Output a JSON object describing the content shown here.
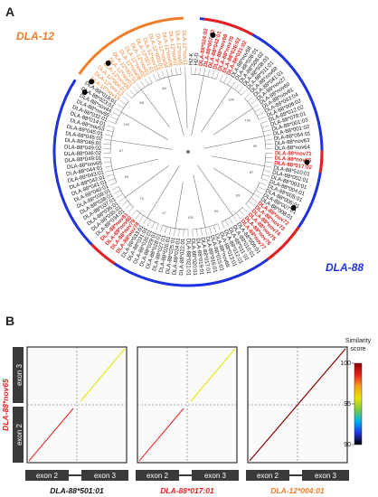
{
  "panel_a": {
    "letter": "A",
    "groups": [
      {
        "label": "DLA-12",
        "color": "#f07d2a"
      },
      {
        "label": "DLA-88",
        "color": "#1f32e0"
      }
    ],
    "outgroup": [
      "H2-K",
      "H2-D"
    ],
    "orange_leaves": [
      "DLA-12*nov11",
      "DLA-12*nov05",
      "DLA-12*nov07",
      "DLA-12*nov06",
      "DLA-12*nov04",
      "DLA-12*003:01",
      "DLA-12*nov10",
      "DLA-12*001:01",
      "DLA-12*nov03",
      "DLA-12*nov02",
      "DLA-12*nov08",
      "DLA-12*002:01",
      "DLA-12*nov01",
      "DLA-12*nov09",
      "DLA-12*004:01",
      "DLA-12*nov12",
      "DLA-12*nov13"
    ],
    "black_leaves": [
      "DLA-88*nov65",
      "DLA-88*049:01",
      "DLA-88*046:02",
      "DLA-88*049:02",
      "DLA-88*046:01",
      "DLA-88*045:02",
      "DLA-88*045:01",
      "DLA-88*nov53",
      "DLA-88*014:01",
      "DLA-88*032:01",
      "DLA-88*nov55",
      "DLA-88*nov44",
      "DLA-88*023:01",
      "DLA-88*018:01",
      "DLA-88*510:01",
      "DLA-88*002:01",
      "DLA-88*003:01",
      "DLA-88*004:01",
      "DLA-88*005:01",
      "DLA-88*006:01",
      "DLA-88*007:01",
      "DLA-88*008:01",
      "DLA-88*009:01",
      "DLA-88*010:01",
      "DLA-88*011:01",
      "DLA-88*012:01",
      "DLA-88*013:01",
      "DLA-88*nov66",
      "DLA-88*015:01",
      "DLA-88*016:01",
      "DLA-88*017:01",
      "DLA-88*019:01",
      "DLA-88*020:01",
      "DLA-88*021:01",
      "DLA-88*022:01",
      "DLA-88*024:01",
      "DLA-88*025:01",
      "DLA-88*026:01",
      "DLA-88*027:01",
      "DLA-88*028:01",
      "DLA-88*029:01",
      "DLA-88*030:01",
      "DLA-88*031:01",
      "DLA-88*033:01",
      "DLA-88*034:01",
      "DLA-88*035:01",
      "DLA-88*036:01",
      "DLA-88*037:01",
      "DLA-88*038:01",
      "DLA-88*039:01",
      "DLA-88*040:01",
      "DLA-88*041:01",
      "DLA-88*042:01",
      "DLA-88*043:01",
      "DLA-88*044:01",
      "DLA-88*nov58",
      "DLA-88*508:01",
      "DLA-88*508:02",
      "DLA-88*508:03",
      "DLA-88*511:01",
      "DLA-88*nov68",
      "DLA-88*041:01",
      "DLA-88*nov27",
      "DLA-88*nov60",
      "DLA-88*nov61",
      "DLA-88*043:04",
      "DLA-88*006:02",
      "DLA-88*012:02",
      "DLA-88*078:01",
      "DLA-88*001:03",
      "DLA-88*001:02",
      "DLA-88*054:01",
      "DLA-88*nov63",
      "DLA-88*nov64"
    ],
    "red_leaves": [
      "DLA-88*024:02",
      "DLA-88*007:02",
      "DLA-88*042:01",
      "DLA-88*nov69",
      "DLA-88*nov70",
      "DLA-88*026:02",
      "DLA-88*031:02",
      "DLA-88*nov71",
      "DLA-88*nov65",
      "DLA-88*017:02",
      "DLA-88*nov72",
      "DLA-88*nov73",
      "DLA-88*nov74",
      "DLA-88*nov75",
      "DLA-88*nov76",
      "DLA-88*nov77",
      "DLA-88*nov78",
      "DLA-88*nov79",
      "DLA-88*nov80",
      "DLA-88*nov81"
    ],
    "bootstrap": [
      "100",
      "100",
      "99",
      "87",
      "69",
      "95",
      "100",
      "97",
      "75",
      "69",
      "67",
      "100",
      "58",
      "66"
    ]
  },
  "panel_b": {
    "letter": "B",
    "y_label": "DLA-88*nov65",
    "y_exons": [
      "exon 3",
      "exon 2"
    ],
    "x_exons": [
      "exon 2",
      "exon 3"
    ],
    "alleles": [
      {
        "label": "DLA-88*501:01",
        "color": "#111111"
      },
      {
        "label": "DLA-88*017:01",
        "color": "#e8201e"
      },
      {
        "label": "DLA-12*004:01",
        "color": "#f07d2a"
      }
    ],
    "legend": {
      "title": "Similarity score",
      "ticks": [
        "100",
        "95",
        "90"
      ],
      "colors": [
        "#8b0000",
        "#e8201e",
        "#f7a21b",
        "#e6e600",
        "#7ac943",
        "#00b0f0",
        "#1f32e0",
        "#000000"
      ]
    }
  }
}
